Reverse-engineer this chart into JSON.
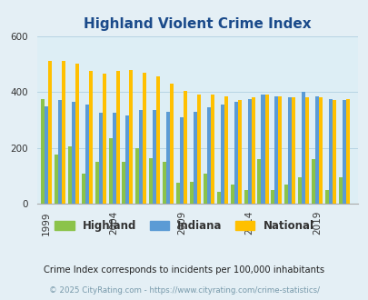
{
  "title": "Highland Violent Crime Index",
  "years": [
    1999,
    2000,
    2001,
    2002,
    2003,
    2004,
    2005,
    2006,
    2007,
    2008,
    2009,
    2010,
    2011,
    2012,
    2013,
    2014,
    2015,
    2016,
    2017,
    2018,
    2019,
    2020,
    2021
  ],
  "highland": [
    375,
    175,
    205,
    110,
    150,
    235,
    150,
    200,
    165,
    150,
    75,
    80,
    110,
    45,
    70,
    50,
    160,
    50,
    70,
    95,
    160,
    50,
    95
  ],
  "indiana": [
    350,
    370,
    365,
    355,
    325,
    325,
    315,
    335,
    335,
    330,
    310,
    330,
    345,
    355,
    365,
    375,
    390,
    385,
    380,
    400,
    385,
    375,
    370
  ],
  "national": [
    510,
    510,
    500,
    475,
    465,
    475,
    480,
    470,
    455,
    430,
    405,
    390,
    390,
    385,
    370,
    380,
    390,
    385,
    380,
    380,
    380,
    370,
    375
  ],
  "highland_color": "#8bc34a",
  "indiana_color": "#5b9bd5",
  "national_color": "#ffc000",
  "bg_color": "#e4eff5",
  "plot_bg": "#ddeef5",
  "title_color": "#1a4a8a",
  "legend_labels": [
    "Highland",
    "Indiana",
    "National"
  ],
  "ylim": [
    0,
    600
  ],
  "yticks": [
    0,
    200,
    400,
    600
  ],
  "xtick_labels": [
    "1999",
    "2004",
    "2009",
    "2014",
    "2019"
  ],
  "xtick_positions": [
    1999,
    2004,
    2009,
    2014,
    2019
  ],
  "footer1": "Crime Index corresponds to incidents per 100,000 inhabitants",
  "footer2": "© 2025 CityRating.com - https://www.cityrating.com/crime-statistics/",
  "bar_width": 0.27
}
